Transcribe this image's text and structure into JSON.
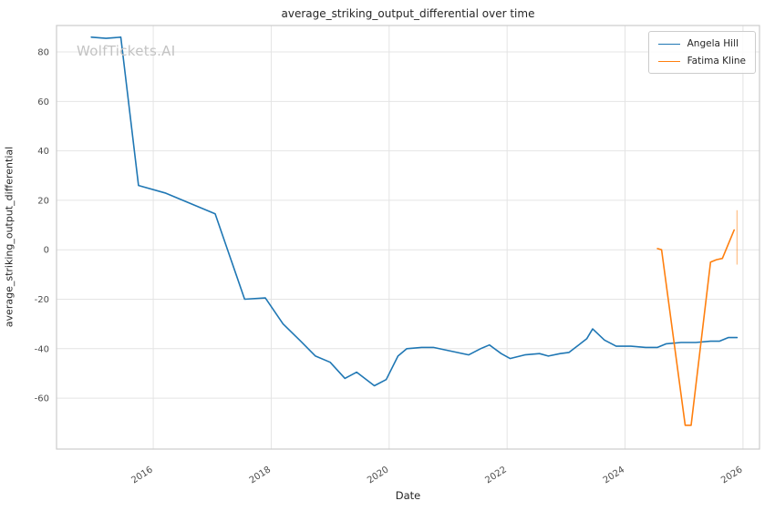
{
  "chart_data": {
    "type": "line",
    "title": "average_striking_output_differential over time",
    "xlabel": "Date",
    "ylabel": "average_striking_output_differential",
    "watermark": "WolfTickets.AI",
    "grid": true,
    "legend_position": "upper right",
    "xlim": [
      2014.36,
      2026.28
    ],
    "ylim": [
      -80.6,
      90.7
    ],
    "x_ticks": [
      2016,
      2018,
      2020,
      2022,
      2024,
      2026
    ],
    "y_ticks": [
      -60,
      -40,
      -20,
      0,
      20,
      40,
      60,
      80
    ],
    "grid_color": "#e4e4e4",
    "spine_color": "#cccccc",
    "series": [
      {
        "name": "Angela Hill",
        "color": "#1f77b4",
        "x": [
          2014.95,
          2015.2,
          2015.45,
          2015.75,
          2016.2,
          2017.05,
          2017.55,
          2017.9,
          2018.2,
          2018.5,
          2018.75,
          2019.0,
          2019.25,
          2019.45,
          2019.75,
          2019.95,
          2020.15,
          2020.3,
          2020.55,
          2020.75,
          2020.95,
          2021.15,
          2021.35,
          2021.55,
          2021.7,
          2021.9,
          2022.05,
          2022.3,
          2022.55,
          2022.7,
          2022.9,
          2023.05,
          2023.35,
          2023.45,
          2023.65,
          2023.85,
          2024.1,
          2024.35,
          2024.55,
          2024.7,
          2024.95,
          2025.2,
          2025.45,
          2025.6,
          2025.75,
          2025.9
        ],
        "y": [
          86,
          85.5,
          86,
          26,
          23,
          14.5,
          -20,
          -19.5,
          -30,
          -37,
          -43,
          -45.5,
          -52,
          -49.5,
          -55,
          -52.5,
          -43,
          -40,
          -39.5,
          -39.5,
          -40.5,
          -41.5,
          -42.5,
          -40,
          -38.5,
          -42,
          -44,
          -42.5,
          -42,
          -43,
          -42,
          -41.5,
          -36,
          -32,
          -36.5,
          -39,
          -39,
          -39.5,
          -39.5,
          -38,
          -37.5,
          -37.5,
          -37,
          -37,
          -35.5,
          -35.5
        ]
      },
      {
        "name": "Fatima Kline",
        "color": "#ff7f0e",
        "x": [
          2024.55,
          2024.62,
          2025.02,
          2025.12,
          2025.45,
          2025.55,
          2025.65,
          2025.85
        ],
        "y": [
          0.5,
          0,
          -71,
          -71,
          -5,
          -4,
          -3.5,
          8
        ]
      }
    ],
    "annotations": [
      {
        "type": "vline",
        "x": 2025.9,
        "y1": -6,
        "y2": 16,
        "color": "#ff7f0e",
        "opacity": 0.45
      }
    ]
  }
}
